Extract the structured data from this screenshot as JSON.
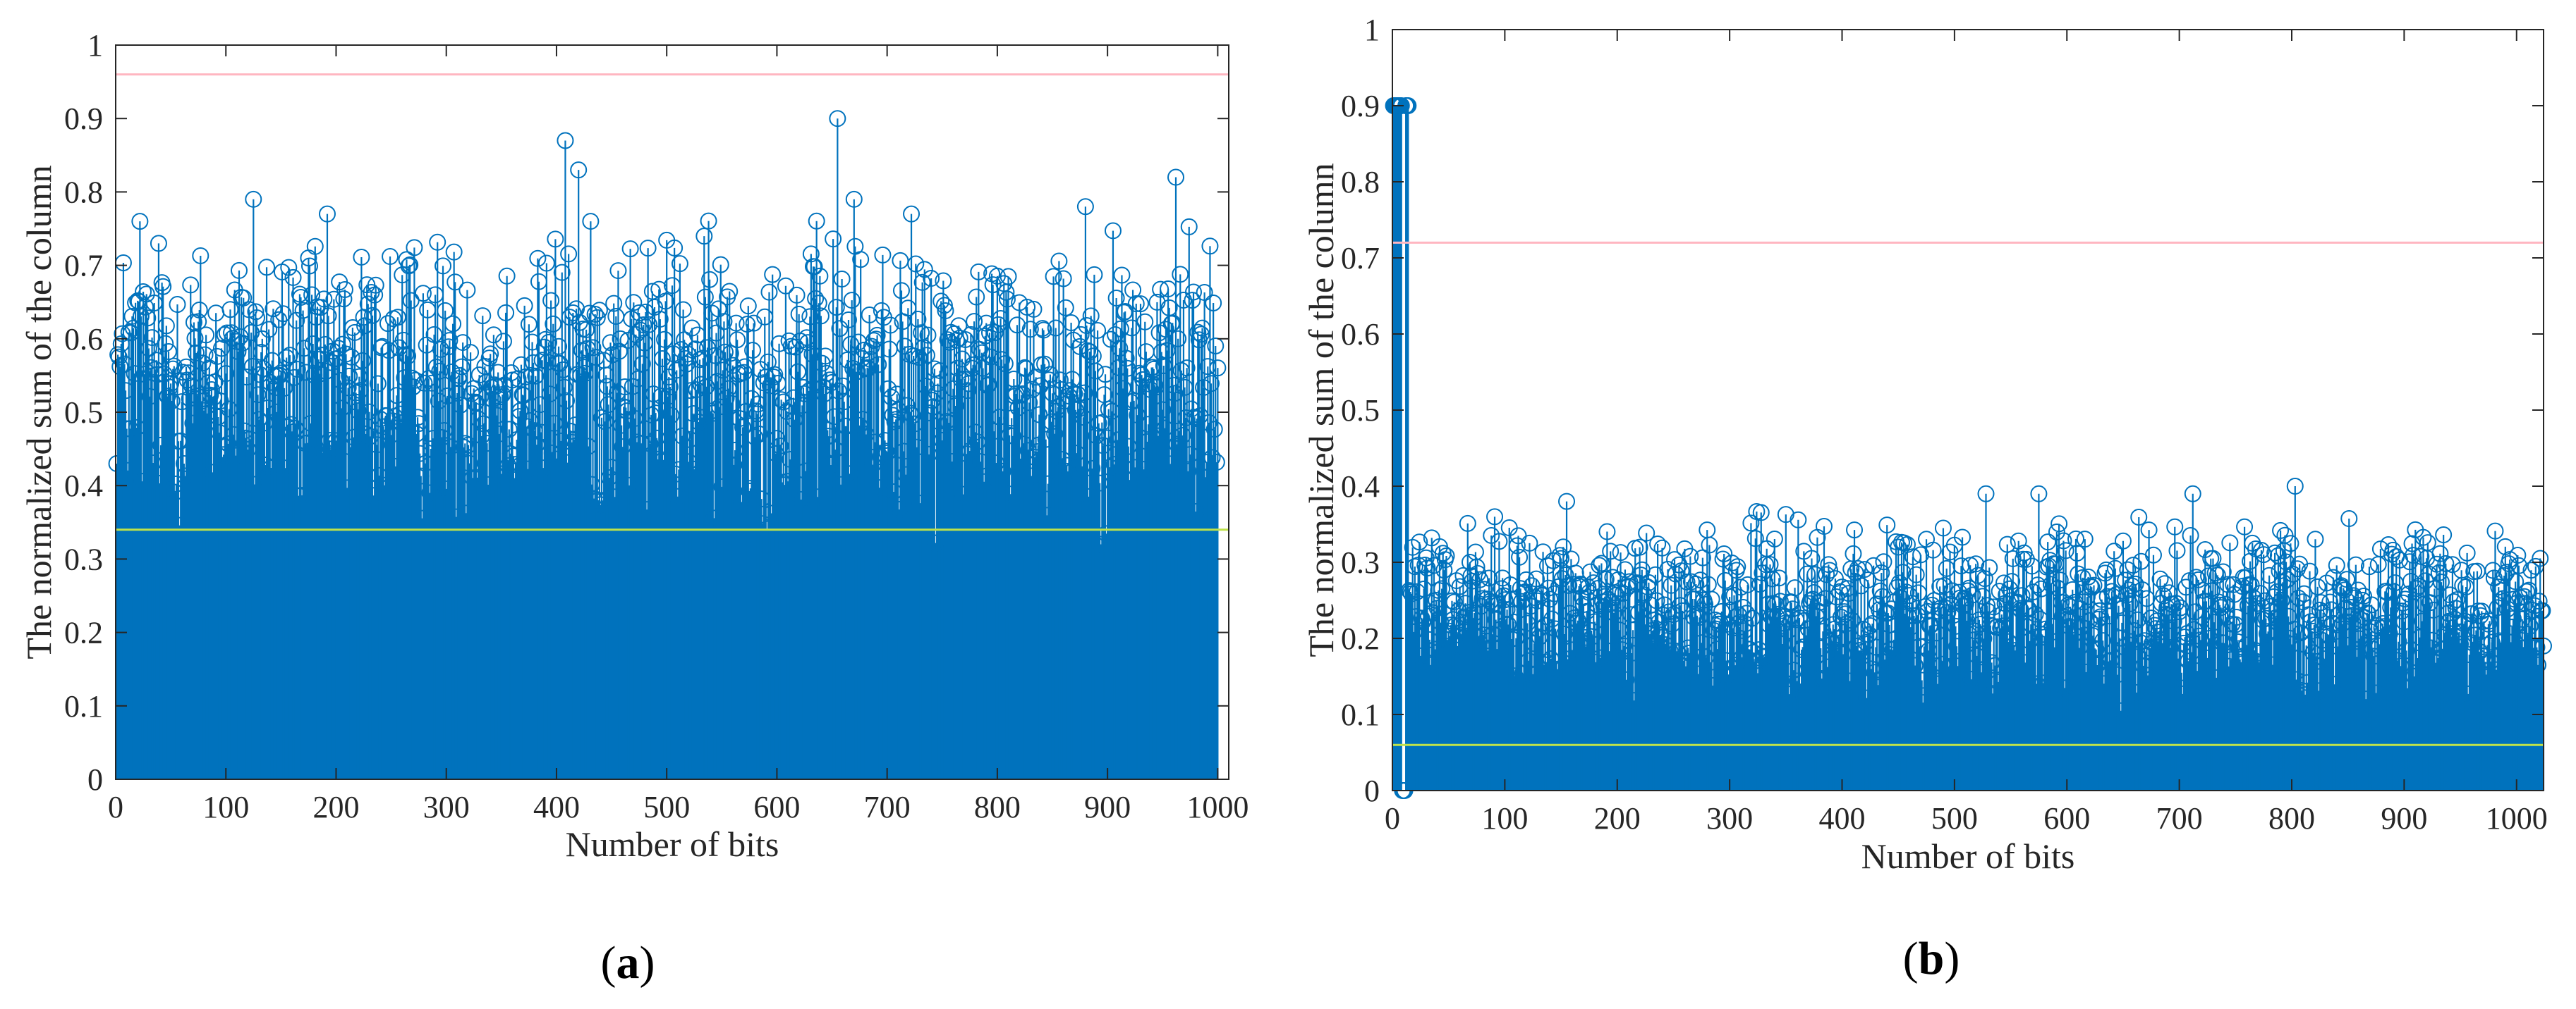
{
  "figure": {
    "panels": [
      {
        "label_open": "(",
        "label_letter": "a",
        "label_close": ")"
      },
      {
        "label_open": "(",
        "label_letter": "b",
        "label_close": ")"
      }
    ]
  },
  "colors": {
    "stem": "#0072BD",
    "upper_threshold": "#FFB6C1",
    "lower_threshold": "#BFE34A",
    "axis": "#262626"
  },
  "chart_data": [
    {
      "type": "stem",
      "panel": "a",
      "title": "",
      "xlabel": "Number of bits",
      "ylabel": "The normalized sum of the column",
      "xlim": [
        0,
        1010
      ],
      "ylim": [
        0,
        1
      ],
      "xticks": [
        0,
        100,
        200,
        300,
        400,
        500,
        600,
        700,
        800,
        900,
        1000
      ],
      "yticks": [
        0,
        0.1,
        0.2,
        0.3,
        0.4,
        0.5,
        0.6,
        0.7,
        0.8,
        0.9,
        1
      ],
      "ytick_labels": [
        "0",
        "0.1",
        "0.2",
        "0.3",
        "0.4",
        "0.5",
        "0.6",
        "0.7",
        "0.8",
        "0.9",
        "1"
      ],
      "n_points": 1000,
      "value_range_bulk": [
        0.33,
        0.78
      ],
      "upper_threshold": 0.96,
      "lower_threshold": 0.34,
      "notable_points": [
        {
          "x": 1,
          "y": 0.43
        },
        {
          "x": 22,
          "y": 0.76
        },
        {
          "x": 125,
          "y": 0.79
        },
        {
          "x": 408,
          "y": 0.87
        },
        {
          "x": 420,
          "y": 0.83
        },
        {
          "x": 655,
          "y": 0.9
        },
        {
          "x": 670,
          "y": 0.79
        },
        {
          "x": 880,
          "y": 0.78
        },
        {
          "x": 962,
          "y": 0.82
        }
      ]
    },
    {
      "type": "stem",
      "panel": "b",
      "title": "",
      "xlabel": "Number of bits",
      "ylabel": "The normalized sum of the column",
      "xlim": [
        0,
        1024
      ],
      "ylim": [
        0,
        1
      ],
      "xticks": [
        0,
        100,
        200,
        300,
        400,
        500,
        600,
        700,
        800,
        900,
        1000
      ],
      "yticks": [
        0,
        0.1,
        0.2,
        0.3,
        0.4,
        0.5,
        0.6,
        0.7,
        0.8,
        0.9,
        1
      ],
      "ytick_labels": [
        "0",
        "0.1",
        "0.2",
        "0.3",
        "0.4",
        "0.5",
        "0.6",
        "0.7",
        "0.8",
        "0.9",
        "1"
      ],
      "n_points": 1024,
      "value_range_bulk": [
        0.08,
        0.4
      ],
      "upper_threshold": 0.72,
      "lower_threshold": 0.06,
      "notable_points": [
        {
          "x": 1,
          "y": 0.9
        },
        {
          "x": 3,
          "y": 0.9
        },
        {
          "x": 5,
          "y": 0.9
        },
        {
          "x": 7,
          "y": 0.9
        },
        {
          "x": 9,
          "y": 0.0
        },
        {
          "x": 12,
          "y": 0.9
        },
        {
          "x": 528,
          "y": 0.39
        },
        {
          "x": 575,
          "y": 0.39
        },
        {
          "x": 712,
          "y": 0.39
        },
        {
          "x": 803,
          "y": 0.4
        },
        {
          "x": 155,
          "y": 0.38
        }
      ]
    }
  ]
}
